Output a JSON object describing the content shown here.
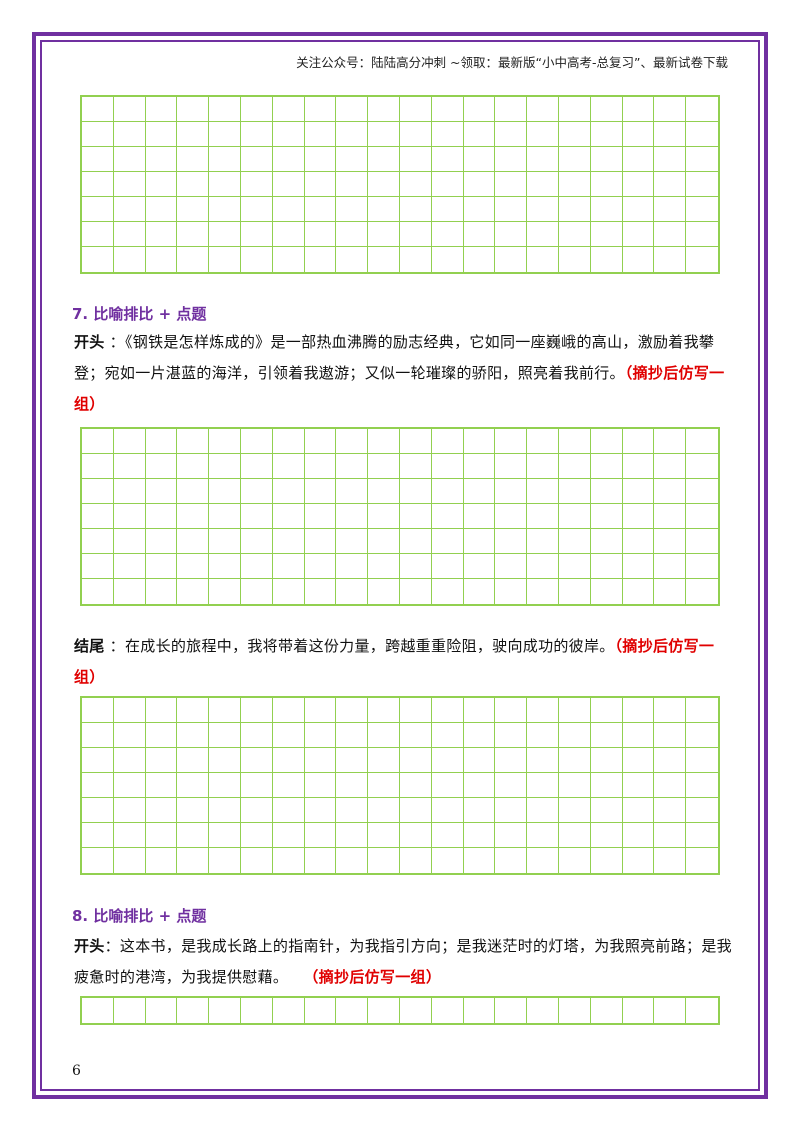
{
  "header": {
    "text": "关注公众号：陆陆高分冲刺 ~领取：最新版“小中高考-总复习”、最新试卷下载"
  },
  "sections": [
    {
      "title": "7. 比喻排比 + 点题",
      "opening_label": "开头",
      "opening_sep": " ：",
      "opening_text": "《钢铁是怎样炼成的》是一部热血沸腾的励志经典，它如同一座巍峨的高山，激励着我攀登；宛如一片湛蓝的海洋，引领着我遨游；又似一轮璀璨的骄阳，照亮着我前行。",
      "opening_note": "（摘抄后仿写一组）",
      "ending_label": "结尾",
      "ending_sep": " ：",
      "ending_text": "在成长的旅程中，我将带着这份力量，跨越重重险阻，驶向成功的彼岸。",
      "ending_note": "（摘抄后仿写一组）"
    },
    {
      "title": "8. 比喻排比 + 点题",
      "opening_label": "开头",
      "opening_sep": "：",
      "opening_text": "这本书，是我成长路上的指南针，为我指引方向；是我迷茫时的灯塔，为我照亮前路；是我疲惫时的港湾，为我提供慰藉。",
      "opening_note": "（摘抄后仿写一组）"
    }
  ],
  "page_number": "6",
  "colors": {
    "border": "#7030a0",
    "grid": "#92d050",
    "title": "#7030a0",
    "note": "#e00000"
  }
}
